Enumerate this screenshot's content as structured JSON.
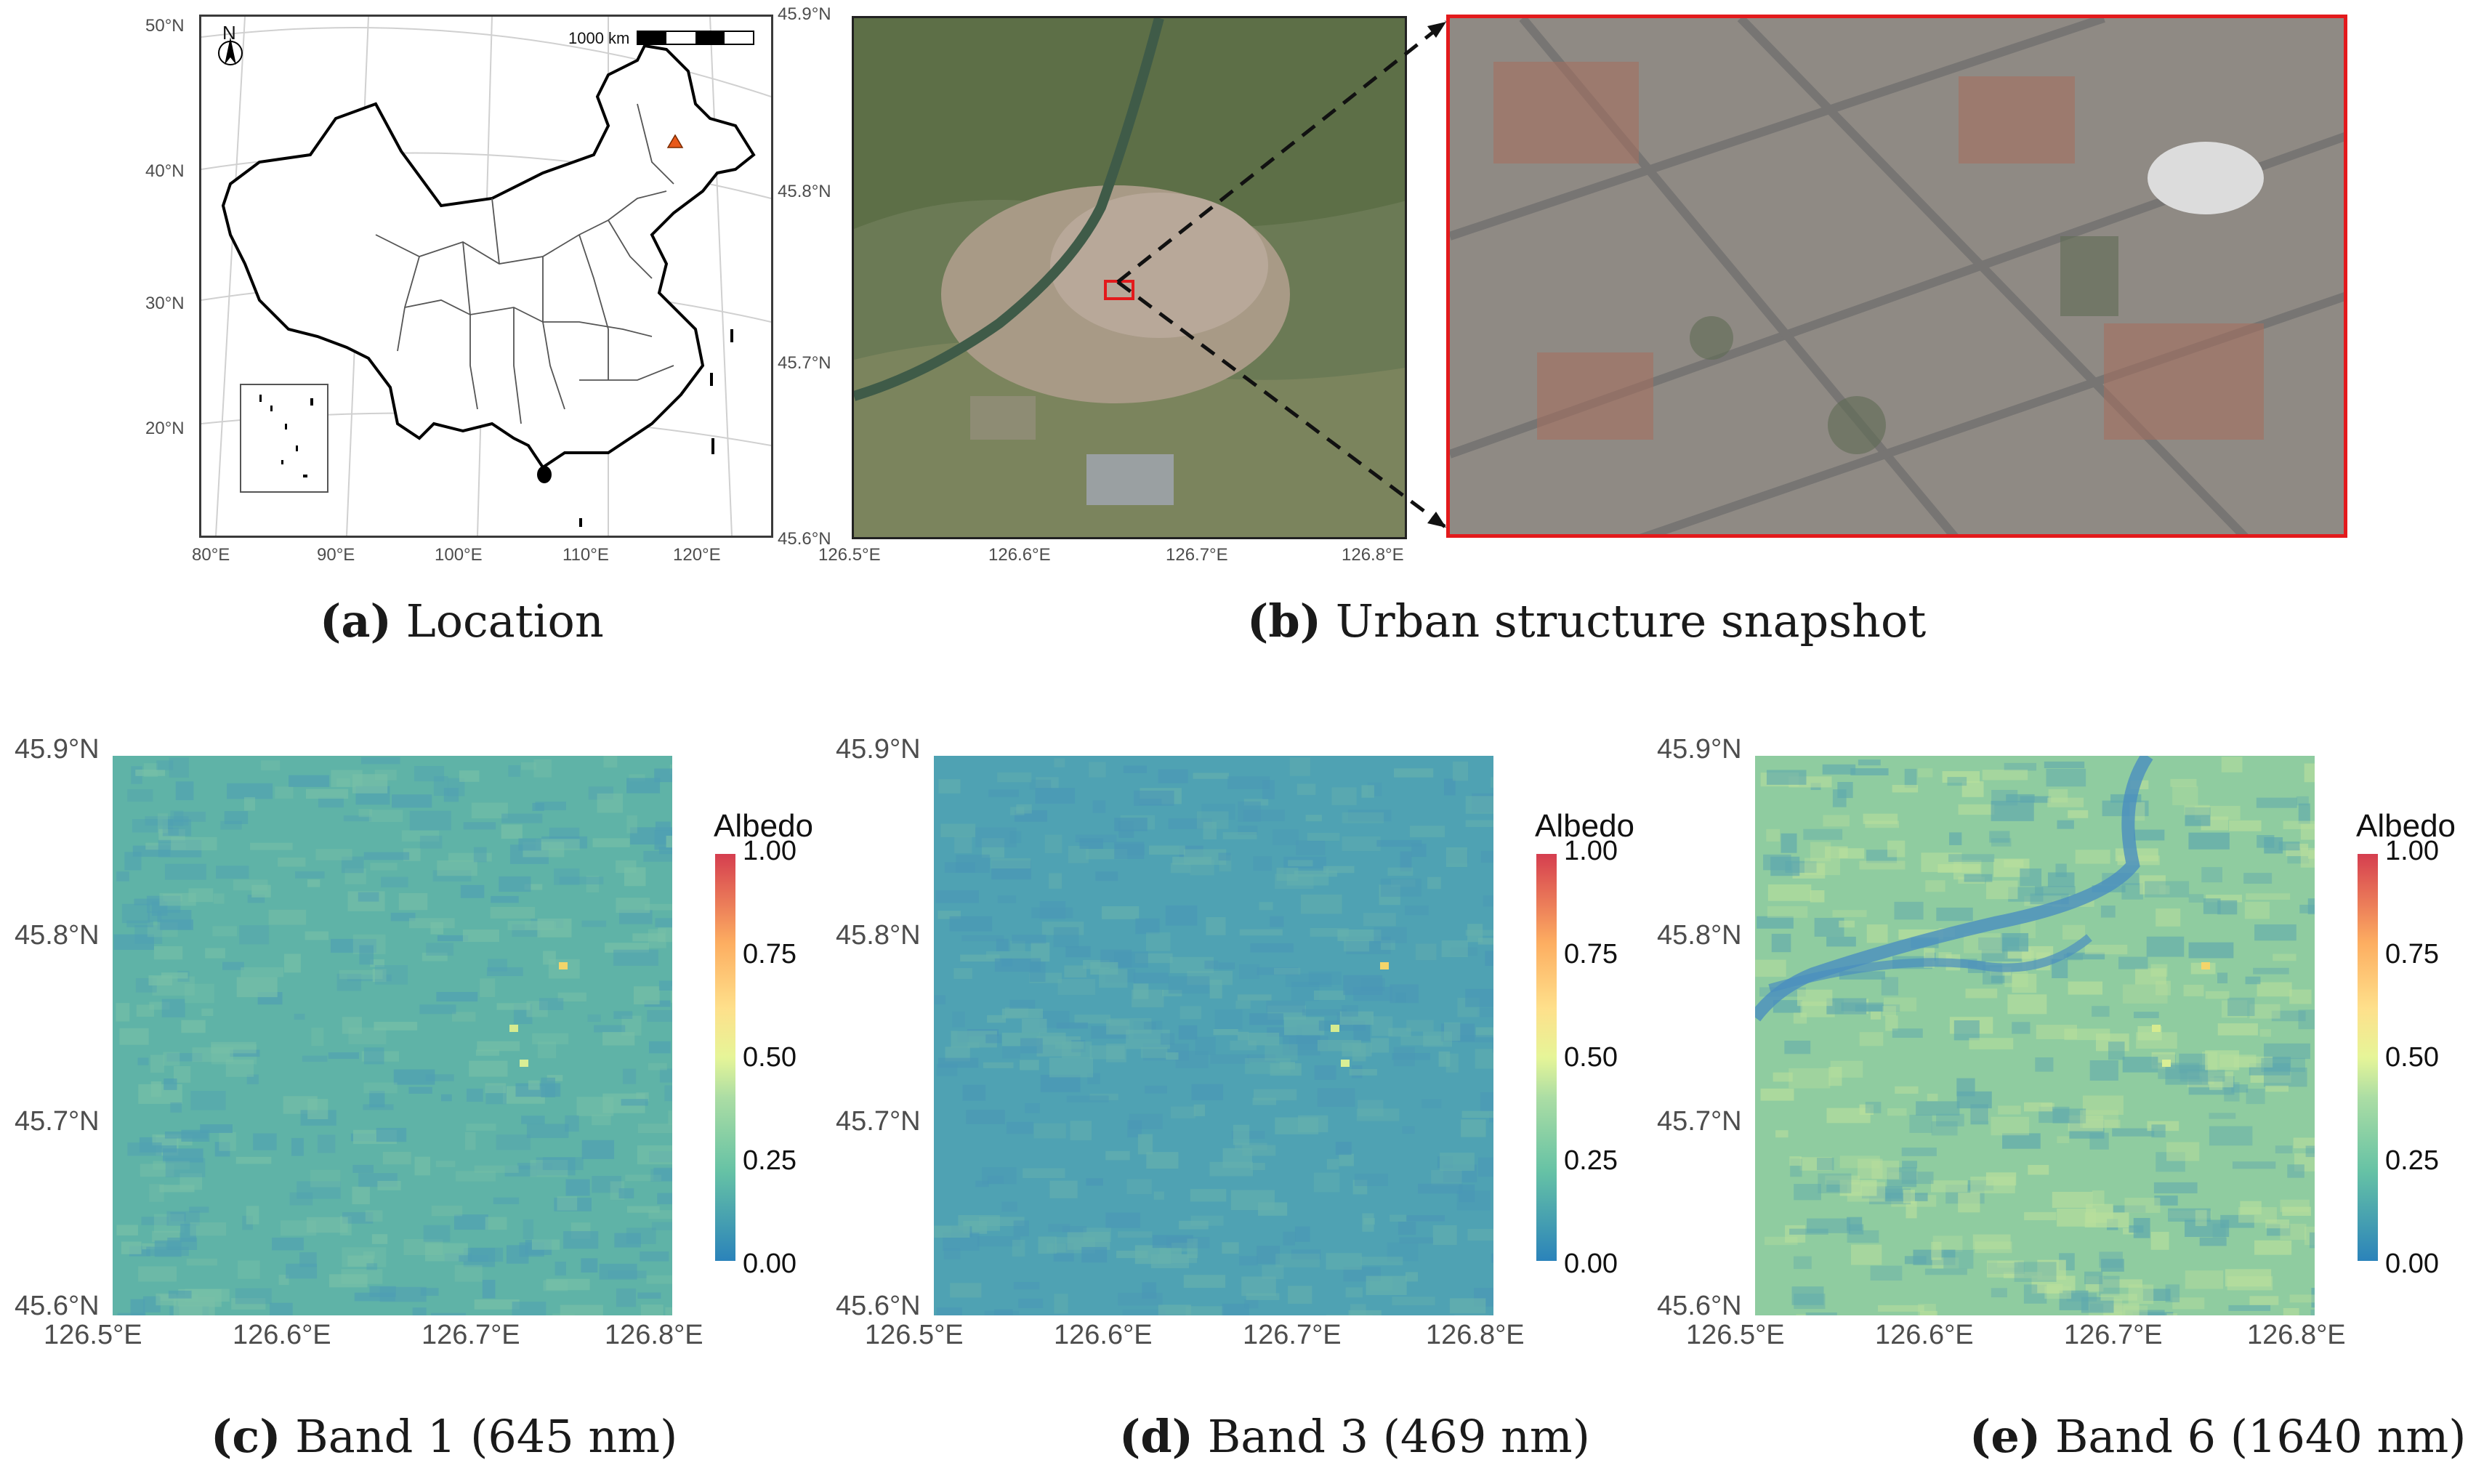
{
  "panel_a": {
    "caption_letter": "(a)",
    "caption_text": "Location",
    "lat_labels": [
      "50°N",
      "40°N",
      "30°N",
      "20°N"
    ],
    "lon_labels": [
      "80°E",
      "90°E",
      "100°E",
      "110°E",
      "120°E"
    ],
    "scale_label": "1000 km",
    "north_label": "N",
    "site_marker_color": "#e8591a"
  },
  "panel_b": {
    "caption_letter": "(b)",
    "caption_text": "Urban structure snapshot",
    "lat_labels": [
      "45.9°N",
      "45.8°N",
      "45.7°N",
      "45.6°N"
    ],
    "lon_labels": [
      "126.5°E",
      "126.6°E",
      "126.7°E",
      "126.8°E"
    ],
    "box_color": "#e31a1c"
  },
  "albedo_panels": [
    {
      "caption_letter": "(c)",
      "caption_text": "Band 1 (645 nm)",
      "base_color": "#5fb3a7",
      "mean_albedo": 0.18
    },
    {
      "caption_letter": "(d)",
      "caption_text": "Band 3 (469 nm)",
      "base_color": "#4fa2b3",
      "mean_albedo": 0.1
    },
    {
      "caption_letter": "(e)",
      "caption_text": "Band 6 (1640 nm)",
      "base_color": "#8fcca0",
      "mean_albedo": 0.28
    }
  ],
  "albedo_axes": {
    "lat_labels": [
      "45.9°N",
      "45.8°N",
      "45.7°N",
      "45.6°N"
    ],
    "lon_labels": [
      "126.5°E",
      "126.6°E",
      "126.7°E",
      "126.8°E"
    ]
  },
  "legend": {
    "title": "Albedo",
    "labels": [
      "1.00",
      "0.75",
      "0.50",
      "0.25",
      "0.00"
    ],
    "colors": [
      "#2b83ba",
      "#66c2a5",
      "#abdda4",
      "#e6f598",
      "#fee08b",
      "#fdae61",
      "#d53e4f"
    ]
  }
}
